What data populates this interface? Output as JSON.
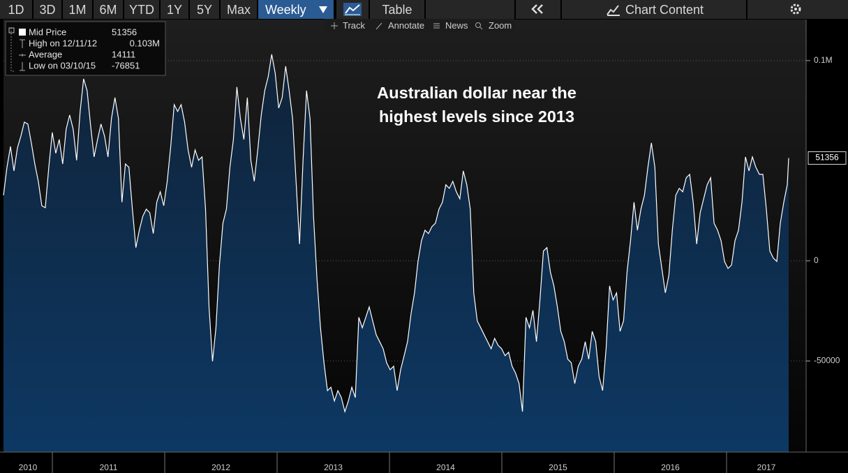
{
  "toolbar": {
    "ranges": [
      "1D",
      "3D",
      "1M",
      "6M",
      "YTD",
      "1Y",
      "5Y",
      "Max"
    ],
    "frequency": "Weekly",
    "view": "Table",
    "menu": "Chart Content"
  },
  "tools": [
    "Track",
    "Annotate",
    "News",
    "Zoom"
  ],
  "chart_data": {
    "type": "area",
    "annotation": [
      "Australian dollar near the",
      "highest levels since 2013"
    ],
    "stats": [
      {
        "label": "High on 12/11/12",
        "value": 103000,
        "value_label": "0.103M"
      },
      {
        "label": "Average",
        "value": 14111
      },
      {
        "label": "Low on 03/10/15",
        "value": -76851
      }
    ],
    "x": [
      2010.565,
      2010.596,
      2010.627,
      2010.658,
      2010.689,
      2010.72,
      2010.751,
      2010.782,
      2010.813,
      2010.844,
      2010.875,
      2010.906,
      2010.937,
      2010.968,
      2010.999,
      2011.03,
      2011.061,
      2011.092,
      2011.123,
      2011.154,
      2011.185,
      2011.216,
      2011.247,
      2011.278,
      2011.309,
      2011.34,
      2011.371,
      2011.402,
      2011.433,
      2011.464,
      2011.495,
      2011.526,
      2011.557,
      2011.588,
      2011.619,
      2011.65,
      2011.681,
      2011.712,
      2011.743,
      2011.774,
      2011.805,
      2011.836,
      2011.867,
      2011.898,
      2011.929,
      2011.96,
      2011.991,
      2012.022,
      2012.053,
      2012.084,
      2012.115,
      2012.146,
      2012.177,
      2012.208,
      2012.239,
      2012.27,
      2012.301,
      2012.332,
      2012.363,
      2012.394,
      2012.425,
      2012.456,
      2012.487,
      2012.518,
      2012.549,
      2012.58,
      2012.611,
      2012.642,
      2012.673,
      2012.704,
      2012.735,
      2012.766,
      2012.797,
      2012.828,
      2012.859,
      2012.89,
      2012.921,
      2012.952,
      2012.983,
      2013.014,
      2013.045,
      2013.076,
      2013.107,
      2013.138,
      2013.169,
      2013.2,
      2013.231,
      2013.262,
      2013.293,
      2013.324,
      2013.355,
      2013.386,
      2013.417,
      2013.448,
      2013.479,
      2013.51,
      2013.541,
      2013.572,
      2013.603,
      2013.634,
      2013.665,
      2013.696,
      2013.727,
      2013.758,
      2013.789,
      2013.82,
      2013.851,
      2013.882,
      2013.913,
      2013.944,
      2013.975,
      2014.006,
      2014.037,
      2014.068,
      2014.099,
      2014.13,
      2014.161,
      2014.192,
      2014.223,
      2014.254,
      2014.285,
      2014.316,
      2014.347,
      2014.378,
      2014.409,
      2014.44,
      2014.471,
      2014.502,
      2014.533,
      2014.564,
      2014.595,
      2014.626,
      2014.657,
      2014.688,
      2014.719,
      2014.75,
      2014.781,
      2014.812,
      2014.843,
      2014.874,
      2014.905,
      2014.936,
      2014.967,
      2014.998,
      2015.029,
      2015.06,
      2015.091,
      2015.122,
      2015.153,
      2015.184,
      2015.215,
      2015.246,
      2015.277,
      2015.308,
      2015.339,
      2015.37,
      2015.401,
      2015.432,
      2015.463,
      2015.494,
      2015.525,
      2015.556,
      2015.587,
      2015.618,
      2015.649,
      2015.68,
      2015.711,
      2015.742,
      2015.773,
      2015.804,
      2015.835,
      2015.866,
      2015.897,
      2015.928,
      2015.959,
      2015.99,
      2016.021,
      2016.052,
      2016.083,
      2016.114,
      2016.145,
      2016.176,
      2016.207,
      2016.238,
      2016.269,
      2016.3,
      2016.331,
      2016.362,
      2016.393,
      2016.424,
      2016.455,
      2016.486,
      2016.517,
      2016.548,
      2016.579,
      2016.61,
      2016.641,
      2016.672,
      2016.703,
      2016.734,
      2016.765,
      2016.796,
      2016.827,
      2016.858,
      2016.889,
      2016.92,
      2016.951,
      2016.982,
      2017.013,
      2017.044,
      2017.075,
      2017.106,
      2017.137,
      2017.168,
      2017.199,
      2017.23,
      2017.261,
      2017.292,
      2017.323,
      2017.354,
      2017.385,
      2017.416,
      2017.447,
      2017.478,
      2017.509,
      2017.54,
      2017.553
    ],
    "series": [
      {
        "name": "Mid Price",
        "color": "#ffffff",
        "values": [
          32700,
          46700,
          57100,
          44900,
          56400,
          62400,
          69300,
          68300,
          58900,
          48400,
          39700,
          27500,
          26500,
          46700,
          64100,
          53700,
          60600,
          48400,
          65800,
          72800,
          65800,
          50200,
          74600,
          90900,
          85000,
          67600,
          51900,
          60600,
          68300,
          62400,
          51900,
          71100,
          81500,
          71100,
          29300,
          48400,
          46700,
          25800,
          6600,
          15300,
          22300,
          25800,
          24000,
          13600,
          29300,
          34500,
          27500,
          39700,
          57100,
          78000,
          74600,
          78000,
          69300,
          55400,
          46700,
          55400,
          50200,
          51900,
          25800,
          -23000,
          -50200,
          -33400,
          -2100,
          18800,
          25800,
          46700,
          60600,
          86800,
          71100,
          60600,
          81500,
          50200,
          39700,
          55400,
          72800,
          85000,
          92000,
          103100,
          93700,
          76300,
          81500,
          97200,
          85000,
          71100,
          39700,
          8400,
          50200,
          85000,
          71100,
          22300,
          -9100,
          -33400,
          -50900,
          -64800,
          -63100,
          -70000,
          -64800,
          -68300,
          -75300,
          -70000,
          -63100,
          -68300,
          -28200,
          -33400,
          -28200,
          -23000,
          -30000,
          -36900,
          -40400,
          -43900,
          -50900,
          -54400,
          -52600,
          -64800,
          -54400,
          -47400,
          -40400,
          -26500,
          -16000,
          -300,
          10100,
          15300,
          13600,
          17100,
          18800,
          25800,
          29300,
          38000,
          36200,
          39700,
          34500,
          31000,
          44900,
          38000,
          25800,
          -16000,
          -30000,
          -33400,
          -36900,
          -40400,
          -43900,
          -38700,
          -42200,
          -43900,
          -47400,
          -45600,
          -52600,
          -56100,
          -61300,
          -75300,
          -28200,
          -33400,
          -24700,
          -40400,
          -19500,
          4900,
          6600,
          -5600,
          -12500,
          -23000,
          -35200,
          -40400,
          -49100,
          -50900,
          -61300,
          -52600,
          -49100,
          -40400,
          -49100,
          -35200,
          -40400,
          -57800,
          -64800,
          -43900,
          -12500,
          -19500,
          -16000,
          -35200,
          -30000,
          -5600,
          10100,
          29300,
          15300,
          25800,
          32700,
          46700,
          58900,
          46700,
          8400,
          -3800,
          -16000,
          -7300,
          15300,
          32700,
          36200,
          34500,
          41500,
          43200,
          29300,
          8400,
          24000,
          31000,
          38000,
          41500,
          18800,
          15300,
          10100,
          -300,
          -3800,
          -2100,
          10100,
          15300,
          29300,
          51900,
          44900,
          51900,
          46700,
          43200,
          43200,
          25800,
          4900,
          1400,
          -300,
          18800,
          29300,
          38000,
          51356
        ]
      }
    ],
    "xlim": [
      2010.565,
      2017.708
    ],
    "xticks": [
      2010,
      2011,
      2012,
      2013,
      2014,
      2015,
      2016,
      2017
    ],
    "ylim": [
      -95500,
      120500
    ],
    "yticks": [
      {
        "value": 100000,
        "label": "0.1M"
      },
      0,
      -50000
    ],
    "grid": true,
    "fill": "#0d3863"
  }
}
